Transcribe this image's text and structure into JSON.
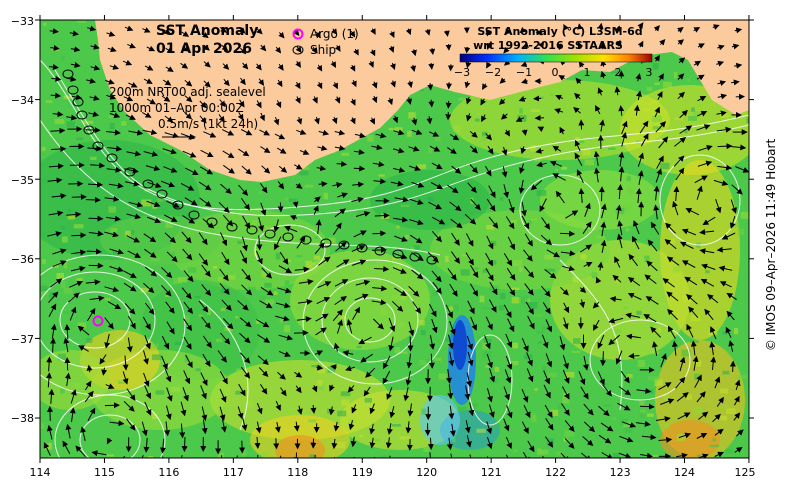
{
  "title": {
    "line1": "SST Anomaly",
    "line2": "01 Apr 2026"
  },
  "legend": {
    "argo": "Argo (1)",
    "ship": "Ship"
  },
  "colorbar": {
    "title_line1": "SST Anomaly (°C) L3SM-6d",
    "title_line2": "wrt 1992-2016 SSTAARS",
    "ticks": [
      "−3",
      "−2",
      "−1",
      "0",
      "1",
      "2",
      "3"
    ],
    "colors": [
      "#00007f",
      "#0030ff",
      "#00b0ff",
      "#30e050",
      "#a0e000",
      "#ffe000",
      "#ff8000",
      "#a00000"
    ]
  },
  "annotations": {
    "line1": "200m  NRT00 adj. sealevel",
    "line2": "1000m 01–Apr 00:00Z",
    "line3": "0.5m/s (1kt 24h)"
  },
  "x_ticks": [
    "114",
    "115",
    "116",
    "117",
    "118",
    "119",
    "120",
    "121",
    "122",
    "123",
    "124",
    "125"
  ],
  "y_ticks": [
    "−33",
    "−34",
    "−35",
    "−36",
    "−37",
    "−38"
  ],
  "credit": "© IMOS 09–Apr–2026 11:49 Hobart",
  "colors": {
    "land": "#fbcb9d",
    "sea_base": "#4cc84a",
    "argo": "#ff00ff",
    "contour": "#ffffff"
  }
}
